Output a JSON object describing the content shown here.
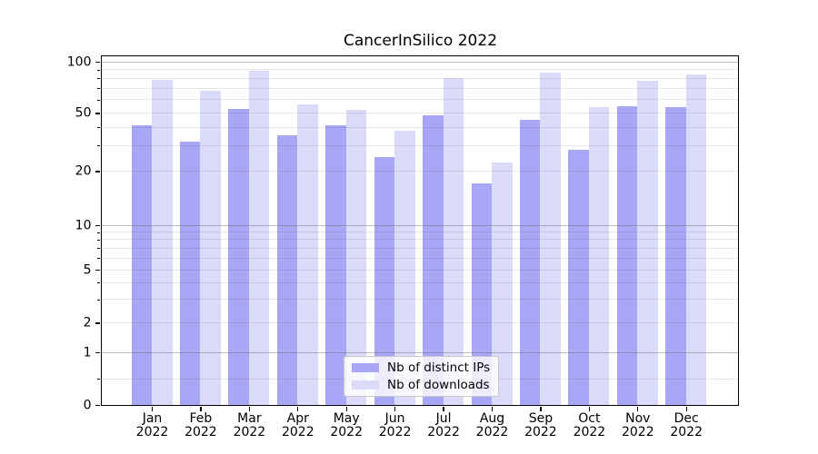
{
  "title": "CancerInSilico 2022",
  "colors": {
    "distinct_ips": "#a7a7f5",
    "downloads": "#dadaf9",
    "grid_major": "rgba(100,100,100,0.42)",
    "grid_minor": "rgba(0,0,0,0.085)",
    "axis": "#000000",
    "legend_border": "#c9c9c9",
    "background": "#ffffff"
  },
  "legend": {
    "items": [
      {
        "label": "Nb of distinct IPs",
        "color_key": "distinct_ips"
      },
      {
        "label": "Nb of downloads",
        "color_key": "downloads"
      }
    ]
  },
  "y_axis": {
    "ticks": [
      {
        "value": 0,
        "label": "0"
      },
      {
        "value": 1,
        "label": "1"
      },
      {
        "value": 2,
        "label": "2"
      },
      {
        "value": 5,
        "label": "5"
      },
      {
        "value": 10,
        "label": "10"
      },
      {
        "value": 20,
        "label": "20"
      },
      {
        "value": 50,
        "label": "50"
      },
      {
        "value": 100,
        "label": "100"
      }
    ],
    "major_grid_values": [
      1,
      10,
      100
    ],
    "minor_grid_values": [
      0.5,
      2,
      3,
      4,
      5,
      6,
      7,
      8,
      9,
      20,
      30,
      40,
      50,
      60,
      70,
      80,
      90
    ]
  },
  "x_axis": {
    "months": [
      "Jan",
      "Feb",
      "Mar",
      "Apr",
      "May",
      "Jun",
      "Jul",
      "Aug",
      "Sep",
      "Oct",
      "Nov",
      "Dec"
    ],
    "year": "2022"
  },
  "chart_data": {
    "type": "bar",
    "title": "CancerInSilico 2022",
    "categories": [
      "Jan 2022",
      "Feb 2022",
      "Mar 2022",
      "Apr 2022",
      "May 2022",
      "Jun 2022",
      "Jul 2022",
      "Aug 2022",
      "Sep 2022",
      "Oct 2022",
      "Nov 2022",
      "Dec 2022"
    ],
    "series": [
      {
        "name": "Nb of distinct IPs",
        "color_key": "distinct_ips",
        "values": [
          41,
          32,
          53,
          35,
          41,
          25,
          48,
          17,
          45,
          28,
          55,
          54
        ]
      },
      {
        "name": "Nb of downloads",
        "color_key": "downloads",
        "values": [
          78,
          68,
          89,
          56,
          52,
          38,
          80,
          23,
          86,
          54,
          77,
          84
        ]
      }
    ],
    "xlabel": "",
    "ylabel": "",
    "yscale": "symlog",
    "yticks": [
      0,
      1,
      2,
      5,
      10,
      20,
      50,
      100
    ],
    "ylim": [
      0,
      110
    ],
    "grid": true,
    "legend_position": "lower center"
  }
}
